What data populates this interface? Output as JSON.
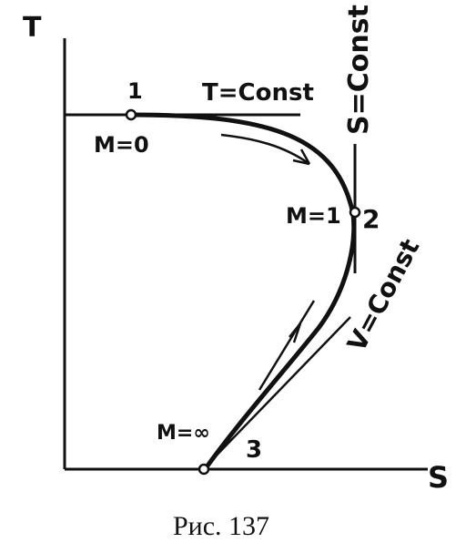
{
  "axes": {
    "y_label": "T",
    "x_label": "S"
  },
  "points": {
    "p1": {
      "number": "1",
      "mach": "M=0"
    },
    "p2": {
      "number": "2",
      "mach": "M=1"
    },
    "p3": {
      "number": "3",
      "mach": "M=∞"
    }
  },
  "lines": {
    "isotherm": "T=Const",
    "isentrope": "S=Const",
    "isochore": "V=Const"
  },
  "caption": "Рис.  137",
  "colors": {
    "ink": "#111111",
    "paper": "#ffffff"
  }
}
